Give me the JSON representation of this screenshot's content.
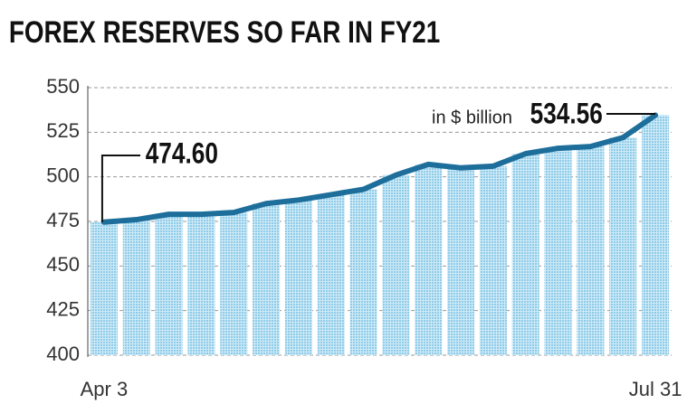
{
  "chart_data": {
    "type": "bar",
    "title": "FOREX RESERVES SO FAR IN FY21",
    "categories": [
      "Apr 3",
      null,
      null,
      null,
      null,
      null,
      null,
      null,
      null,
      null,
      null,
      null,
      null,
      null,
      null,
      null,
      null,
      "Jul 31"
    ],
    "values": [
      474.6,
      476,
      479,
      479,
      480,
      485,
      487,
      490,
      493,
      501,
      507,
      505,
      506,
      513,
      516,
      517,
      522,
      534.56
    ],
    "value_labels": [
      "474.60",
      null,
      null,
      null,
      null,
      null,
      null,
      null,
      null,
      null,
      null,
      null,
      null,
      null,
      null,
      null,
      null,
      "534.56"
    ],
    "unit_note": "in $ billion",
    "color": "#a9d8ee",
    "line_color": "#1d6e9b",
    "ylim": [
      400,
      550
    ],
    "yticks": [
      400,
      425,
      450,
      475,
      500,
      525,
      550
    ],
    "grid": true
  }
}
